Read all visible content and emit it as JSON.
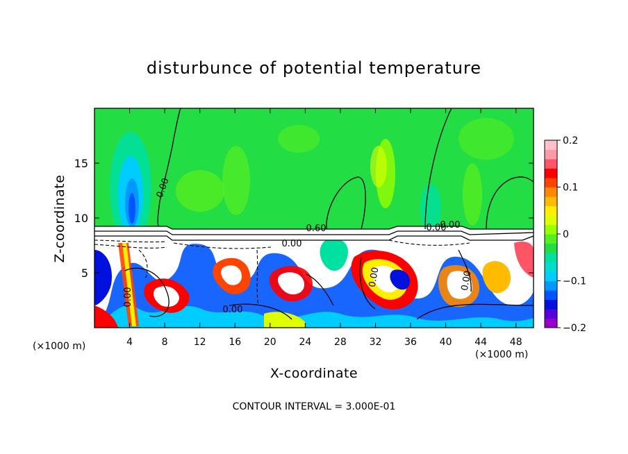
{
  "chart_data": {
    "type": "heatmap",
    "title": "disturbunce of potential temperature",
    "xlabel": "X-coordinate",
    "ylabel": "Z-coordinate",
    "x_unit_label": "(×1000 m)",
    "x_ticks": [
      4,
      8,
      12,
      16,
      20,
      24,
      28,
      32,
      36,
      40,
      44,
      48
    ],
    "y_ticks": [
      5,
      10,
      15
    ],
    "xlim": [
      0,
      50
    ],
    "ylim": [
      0,
      20
    ],
    "colorbar": {
      "ticks": [
        "0.2",
        "0.1",
        "0",
        "−0.1",
        "−0.2"
      ],
      "range": [
        -0.2,
        0.2
      ],
      "colors": [
        "#9900cc",
        "#5500dd",
        "#0011dd",
        "#0055ff",
        "#0099ff",
        "#00ccff",
        "#00ddd0",
        "#00e0a0",
        "#22dd44",
        "#55ee22",
        "#99ff00",
        "#ddff00",
        "#ffee00",
        "#ffbb00",
        "#ff8800",
        "#ff4400",
        "#ff0000",
        "#ff5566",
        "#ff99aa",
        "#ffc0c8"
      ]
    },
    "contour_labels": [
      "0.00",
      "0.60",
      "0.00",
      "0.00",
      "0.00",
      "0.00",
      "0.00",
      "0.00",
      "0.00"
    ],
    "contour_interval_text": "CONTOUR INTERVAL = 3.000E-01"
  }
}
